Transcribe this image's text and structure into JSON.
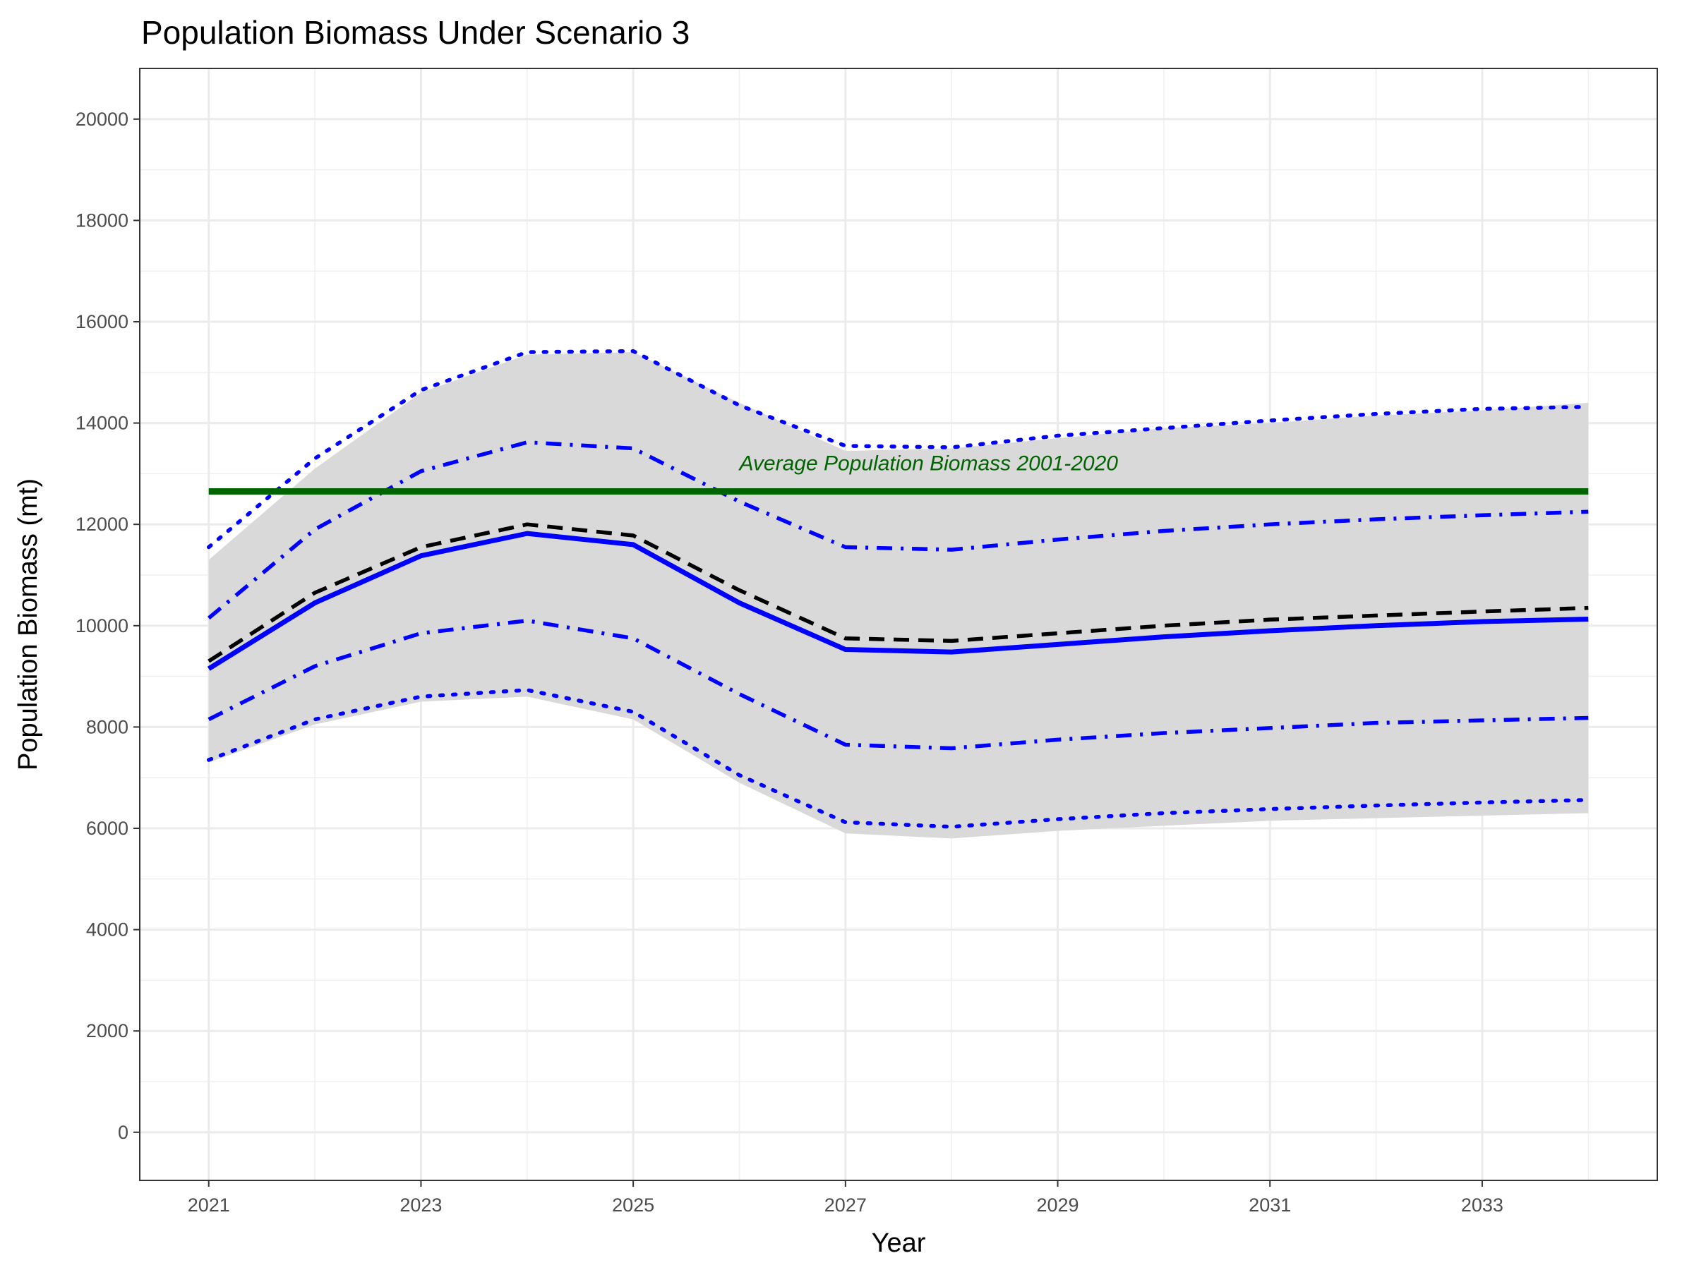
{
  "chart_data": {
    "type": "line",
    "title": "Population Biomass Under Scenario 3",
    "xlabel": "Year",
    "ylabel": "Population Biomass (mt)",
    "xlim": [
      2020.35,
      2034.65
    ],
    "ylim": [
      -950,
      21000
    ],
    "x_ticks": [
      2021,
      2023,
      2025,
      2027,
      2029,
      2031,
      2033
    ],
    "y_ticks": [
      0,
      2000,
      4000,
      6000,
      8000,
      10000,
      12000,
      14000,
      16000,
      18000,
      20000
    ],
    "grid": true,
    "x": [
      2021,
      2022,
      2023,
      2024,
      2025,
      2026,
      2027,
      2028,
      2029,
      2030,
      2031,
      2032,
      2033,
      2034
    ],
    "band": {
      "fill": "#d9d9d9",
      "lower": [
        7300,
        8050,
        8500,
        8600,
        8150,
        6900,
        5900,
        5800,
        5950,
        6050,
        6150,
        6200,
        6250,
        6300
      ],
      "upper": [
        11300,
        13100,
        14600,
        15350,
        15400,
        14400,
        13450,
        13500,
        13700,
        13900,
        14000,
        14150,
        14250,
        14400
      ]
    },
    "series": [
      {
        "style": "dotted",
        "color": "#0000ff",
        "values": [
          11550,
          13300,
          14650,
          15400,
          15420,
          14350,
          13550,
          13520,
          13750,
          13900,
          14050,
          14180,
          14280,
          14320
        ]
      },
      {
        "style": "dashdot",
        "color": "#0000ff",
        "values": [
          10150,
          11900,
          13050,
          13620,
          13500,
          12450,
          11550,
          11500,
          11700,
          11870,
          12000,
          12100,
          12180,
          12250
        ]
      },
      {
        "style": "dashed",
        "color": "#000000",
        "values": [
          9300,
          10650,
          11550,
          12000,
          11780,
          10700,
          9750,
          9700,
          9850,
          10000,
          10120,
          10200,
          10280,
          10350
        ]
      },
      {
        "style": "solid",
        "color": "#0000ff",
        "values": [
          9150,
          10450,
          11380,
          11820,
          11600,
          10450,
          9530,
          9480,
          9630,
          9780,
          9900,
          10000,
          10080,
          10130
        ]
      },
      {
        "style": "dashdot",
        "color": "#0000ff",
        "values": [
          8150,
          9200,
          9850,
          10100,
          9750,
          8650,
          7650,
          7580,
          7750,
          7880,
          7980,
          8080,
          8130,
          8180
        ]
      },
      {
        "style": "dotted",
        "color": "#0000ff",
        "values": [
          7350,
          8150,
          8600,
          8730,
          8300,
          7050,
          6120,
          6030,
          6180,
          6300,
          6380,
          6450,
          6510,
          6560
        ]
      }
    ],
    "reference_line": {
      "value": 12650,
      "color": "#006400",
      "label": "Average Population Biomass 2001-2020",
      "label_x": 2026
    }
  }
}
